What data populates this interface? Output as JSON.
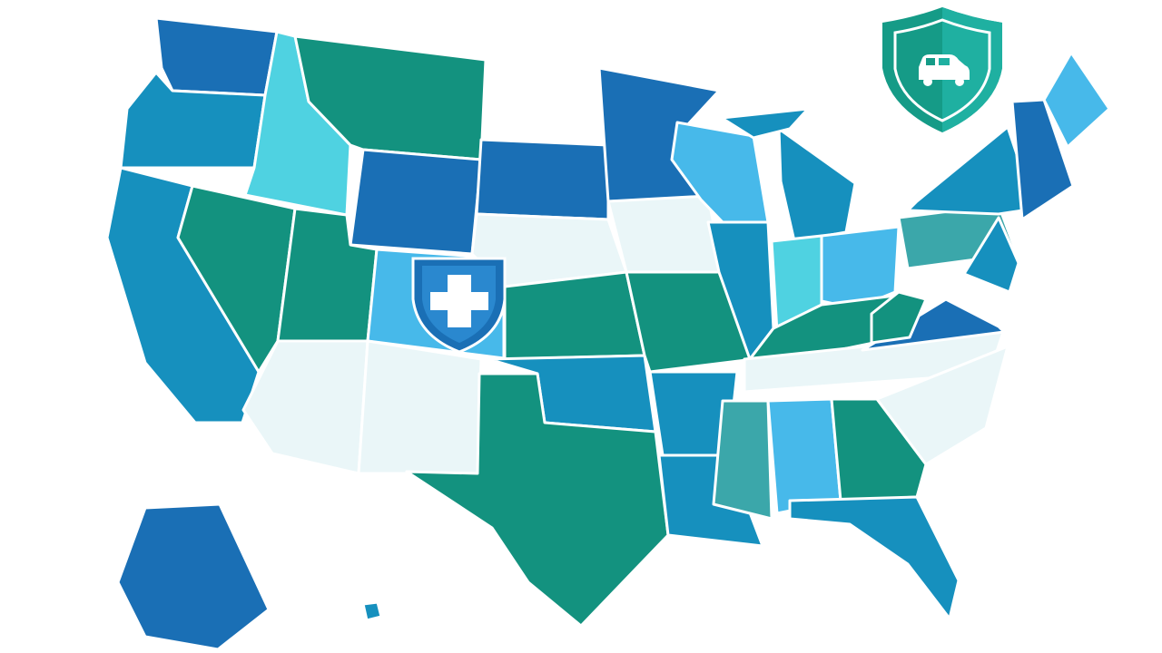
{
  "palette": {
    "dark_blue": "#1a6fb5",
    "ocean_blue": "#1690be",
    "green": "#13927f",
    "light_blue": "#47b9ea",
    "cyan": "#4fd2e1",
    "pale": "#eaf6f8",
    "muted_teal": "#3ba7aa"
  },
  "regions": [
    {
      "name": "washington",
      "color": "dark_blue"
    },
    {
      "name": "oregon",
      "color": "ocean_blue"
    },
    {
      "name": "california",
      "color": "ocean_blue"
    },
    {
      "name": "idaho",
      "color": "cyan"
    },
    {
      "name": "nevada",
      "color": "green"
    },
    {
      "name": "montana",
      "color": "green"
    },
    {
      "name": "wyoming",
      "color": "dark_blue"
    },
    {
      "name": "utah",
      "color": "green"
    },
    {
      "name": "colorado",
      "color": "light_blue"
    },
    {
      "name": "arizona",
      "color": "pale"
    },
    {
      "name": "new-mexico",
      "color": "pale"
    },
    {
      "name": "south-dakota",
      "color": "dark_blue"
    },
    {
      "name": "nebraska",
      "color": "pale"
    },
    {
      "name": "kansas",
      "color": "green"
    },
    {
      "name": "oklahoma",
      "color": "ocean_blue"
    },
    {
      "name": "texas",
      "color": "green"
    },
    {
      "name": "minnesota",
      "color": "dark_blue"
    },
    {
      "name": "iowa",
      "color": "pale"
    },
    {
      "name": "missouri",
      "color": "green"
    },
    {
      "name": "arkansas",
      "color": "ocean_blue"
    },
    {
      "name": "louisiana",
      "color": "ocean_blue"
    },
    {
      "name": "wisconsin",
      "color": "light_blue"
    },
    {
      "name": "illinois",
      "color": "ocean_blue"
    },
    {
      "name": "michigan",
      "color": "ocean_blue"
    },
    {
      "name": "michigan-upper",
      "color": "ocean_blue"
    },
    {
      "name": "indiana",
      "color": "cyan"
    },
    {
      "name": "ohio",
      "color": "light_blue"
    },
    {
      "name": "kentucky",
      "color": "green"
    },
    {
      "name": "tennessee",
      "color": "pale"
    },
    {
      "name": "mississippi",
      "color": "muted_teal"
    },
    {
      "name": "alabama",
      "color": "light_blue"
    },
    {
      "name": "georgia",
      "color": "green"
    },
    {
      "name": "florida",
      "color": "ocean_blue"
    },
    {
      "name": "carolinas",
      "color": "pale"
    },
    {
      "name": "virginia",
      "color": "dark_blue"
    },
    {
      "name": "west-virginia",
      "color": "green"
    },
    {
      "name": "pennsylvania",
      "color": "muted_teal"
    },
    {
      "name": "new-york",
      "color": "ocean_blue"
    },
    {
      "name": "new-england",
      "color": "dark_blue"
    },
    {
      "name": "maine",
      "color": "light_blue"
    },
    {
      "name": "maryland-new-jersey",
      "color": "ocean_blue"
    },
    {
      "name": "alaska",
      "color": "dark_blue"
    },
    {
      "name": "hawaii",
      "color": "ocean_blue"
    }
  ],
  "icons": {
    "health_shield": "medical-cross-shield-icon",
    "auto_shield": "car-insurance-shield-icon"
  }
}
